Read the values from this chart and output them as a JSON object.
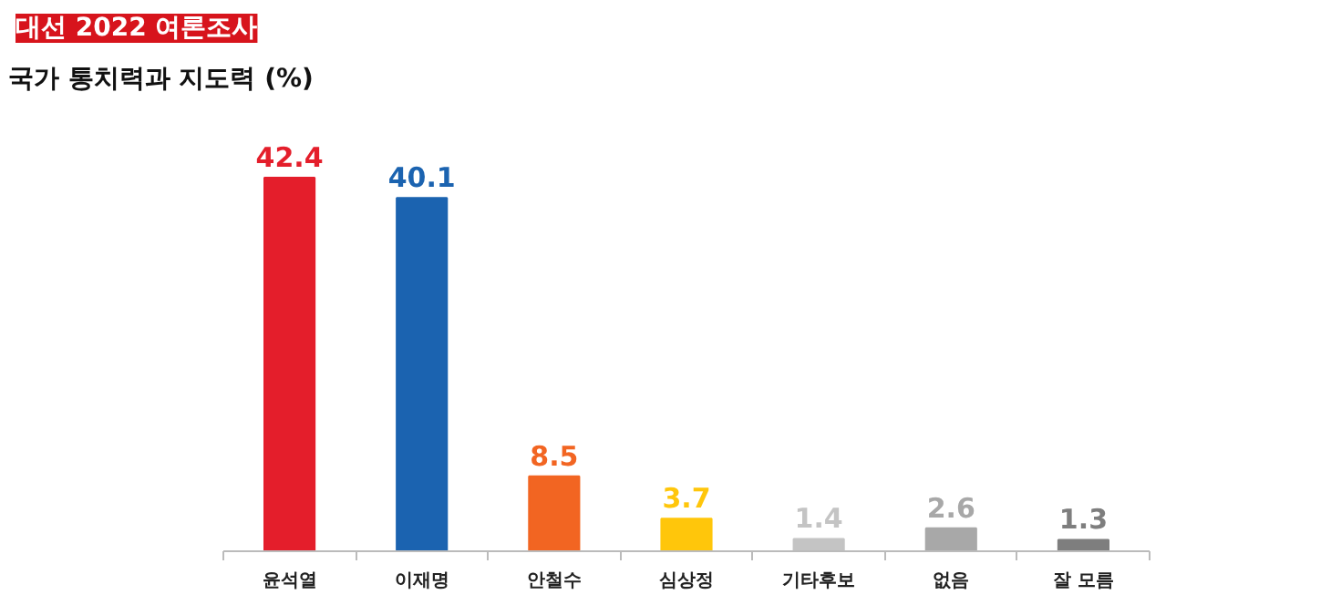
{
  "chart_data": {
    "type": "bar",
    "title": "대선 2022 여론조사",
    "subtitle": "국가 통치력과 지도력 (%)",
    "categories": [
      "윤석열",
      "이재명",
      "안철수",
      "심상정",
      "기타후보",
      "없음",
      "잘 모름"
    ],
    "values": [
      42.4,
      40.1,
      8.5,
      3.7,
      1.4,
      2.6,
      1.3
    ],
    "colors": [
      "#e41e2b",
      "#1b63b0",
      "#f26522",
      "#ffc60b",
      "#c4c4c4",
      "#a8a8a8",
      "#7e7e7e"
    ],
    "data_labels": true,
    "grid": false
  }
}
